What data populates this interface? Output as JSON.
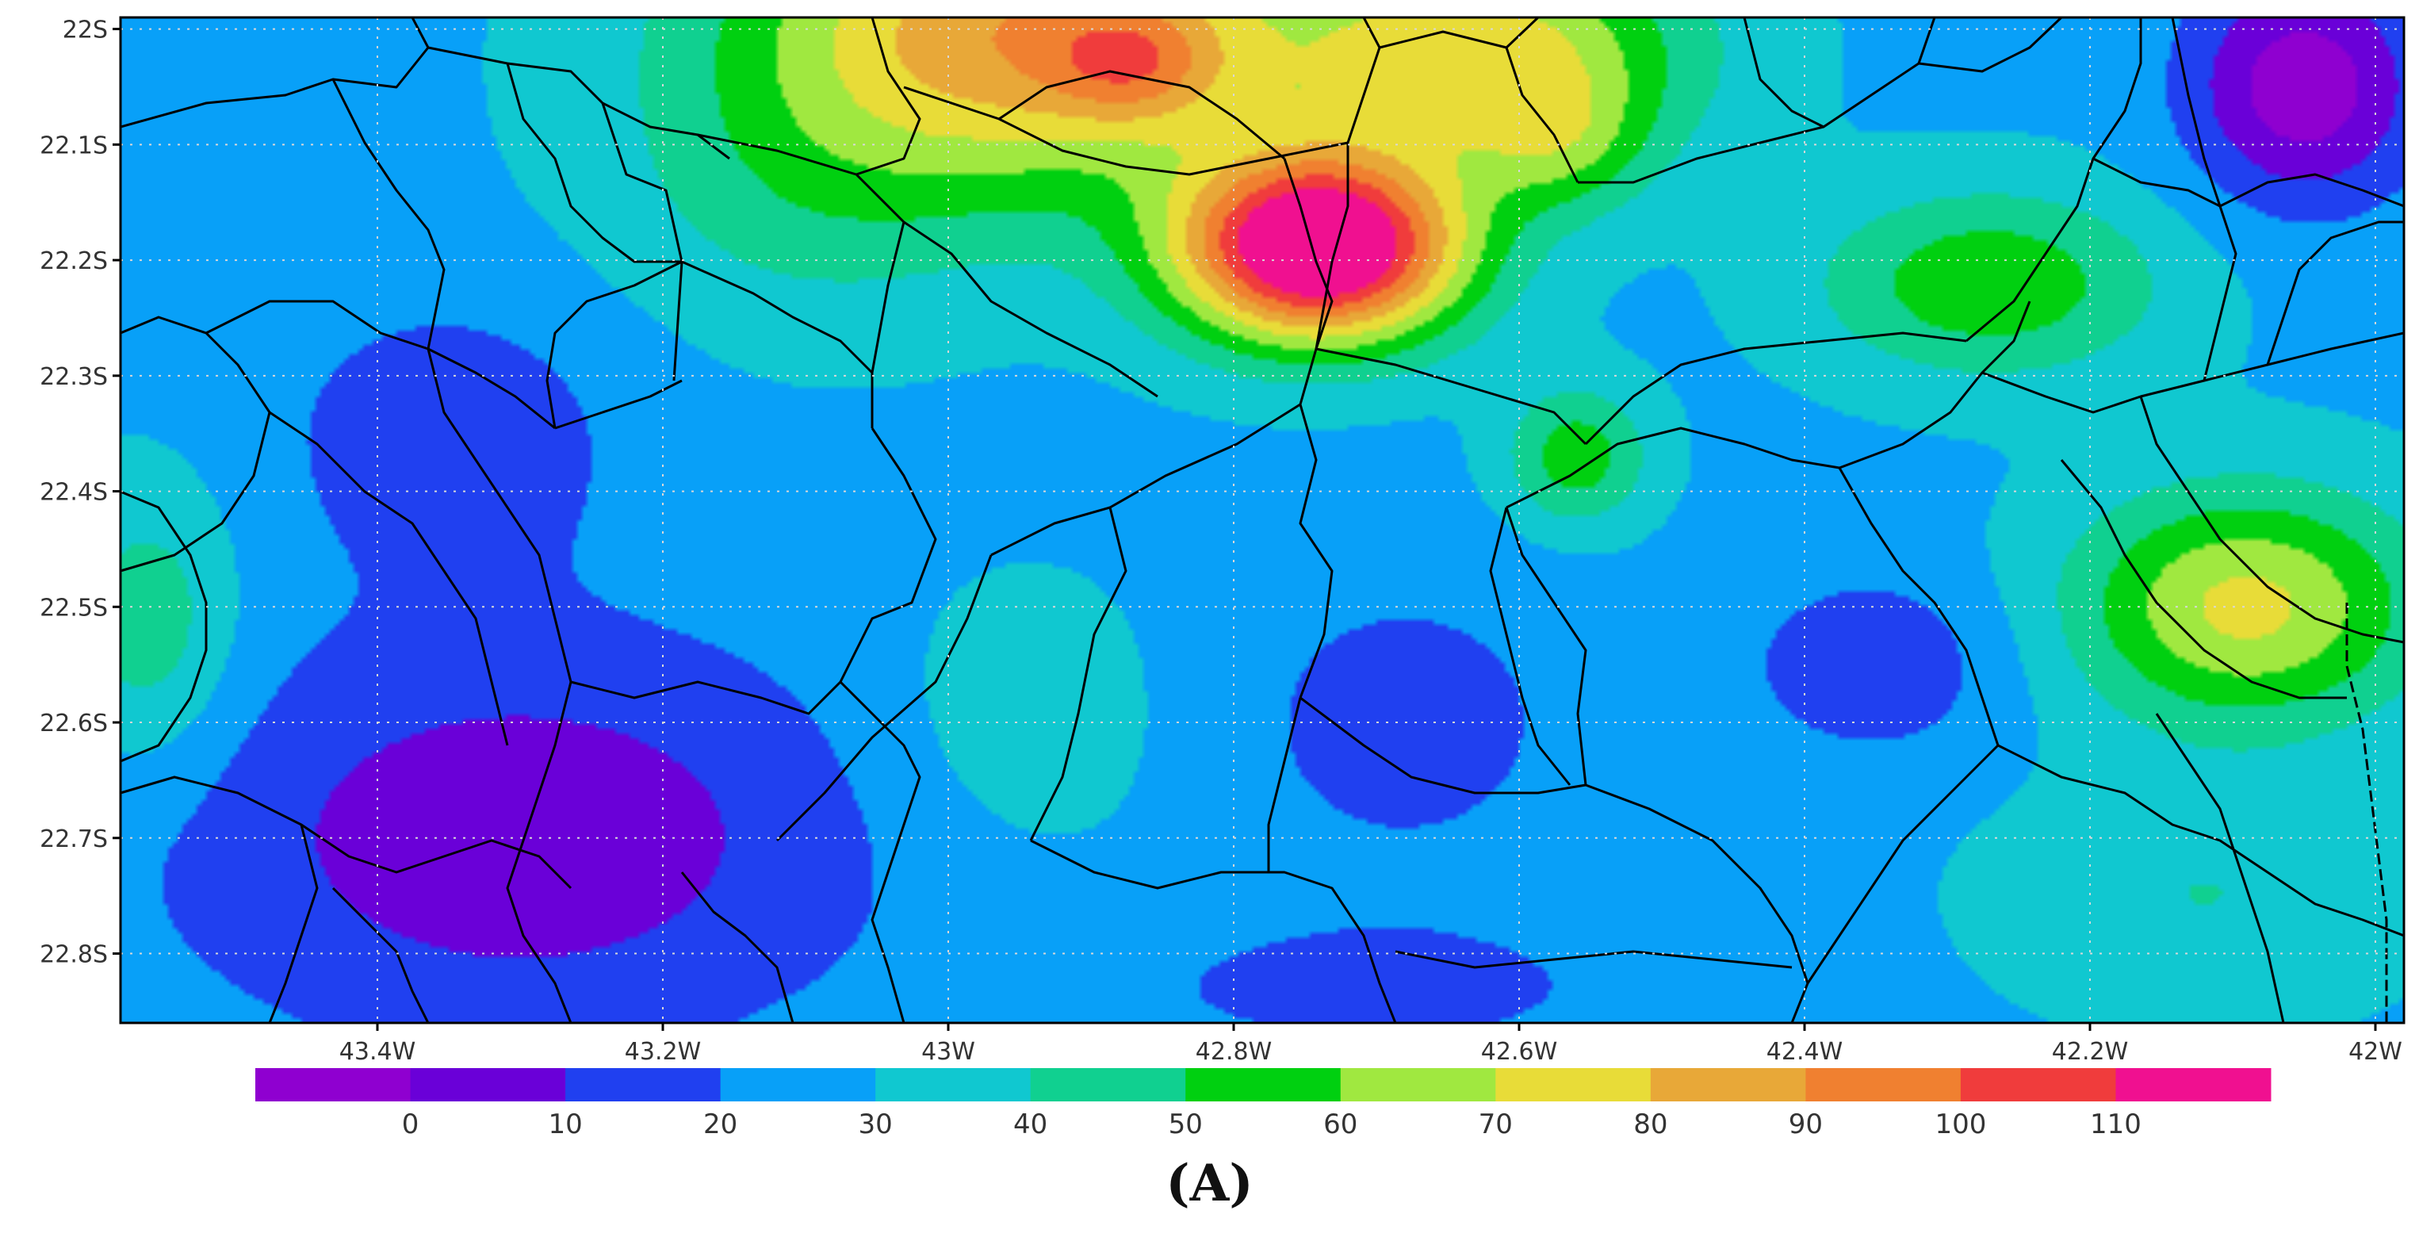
{
  "panel_label": "(A)",
  "map": {
    "lon_range": [
      -43.58,
      -41.98
    ],
    "lat_range": [
      -22.86,
      -21.99
    ],
    "lat_ticks": [
      {
        "value": -22.0,
        "label": "22S"
      },
      {
        "value": -22.1,
        "label": "22.1S"
      },
      {
        "value": -22.2,
        "label": "22.2S"
      },
      {
        "value": -22.3,
        "label": "22.3S"
      },
      {
        "value": -22.4,
        "label": "22.4S"
      },
      {
        "value": -22.5,
        "label": "22.5S"
      },
      {
        "value": -22.6,
        "label": "22.6S"
      },
      {
        "value": -22.7,
        "label": "22.7S"
      },
      {
        "value": -22.8,
        "label": "22.8S"
      }
    ],
    "lon_ticks": [
      {
        "value": -43.4,
        "label": "43.4W"
      },
      {
        "value": -43.2,
        "label": "43.2W"
      },
      {
        "value": -43.0,
        "label": "43W"
      },
      {
        "value": -42.8,
        "label": "42.8W"
      },
      {
        "value": -42.6,
        "label": "42.6W"
      },
      {
        "value": -42.4,
        "label": "42.4W"
      },
      {
        "value": -42.2,
        "label": "42.2W"
      },
      {
        "value": -42.0,
        "label": "42W"
      }
    ],
    "grid": true,
    "contour_levels": [
      0,
      10,
      20,
      30,
      40,
      50,
      60,
      70,
      80,
      90,
      100,
      110
    ],
    "hotspots": [
      {
        "lon": -42.74,
        "lat": -22.19,
        "value": 105,
        "sx": 0.1,
        "sy": 0.08
      },
      {
        "lon": -42.95,
        "lat": -22.0,
        "value": 60,
        "sx": 0.2,
        "sy": 0.14
      },
      {
        "lon": -42.62,
        "lat": -22.02,
        "value": 45,
        "sx": 0.14,
        "sy": 0.1
      },
      {
        "lon": -42.57,
        "lat": -22.1,
        "value": 20,
        "sx": 0.06,
        "sy": 0.06
      },
      {
        "lon": -42.87,
        "lat": -22.03,
        "value": 25,
        "sx": 0.06,
        "sy": 0.05
      },
      {
        "lon": -42.09,
        "lat": -22.5,
        "value": 45,
        "sx": 0.12,
        "sy": 0.1
      },
      {
        "lon": -42.27,
        "lat": -22.22,
        "value": 30,
        "sx": 0.12,
        "sy": 0.08
      },
      {
        "lon": -42.56,
        "lat": -22.37,
        "value": 28,
        "sx": 0.05,
        "sy": 0.06
      },
      {
        "lon": -42.95,
        "lat": -22.6,
        "value": 10,
        "sx": 0.1,
        "sy": 0.12
      },
      {
        "lon": -42.12,
        "lat": -22.75,
        "value": 12,
        "sx": 0.14,
        "sy": 0.1
      },
      {
        "lon": -43.56,
        "lat": -22.52,
        "value": 20,
        "sx": 0.06,
        "sy": 0.12
      },
      {
        "lon": -43.1,
        "lat": -22.15,
        "value": 12,
        "sx": 0.14,
        "sy": 0.12
      },
      {
        "lon": -43.3,
        "lat": -22.7,
        "value": -25,
        "sx": 0.25,
        "sy": 0.18
      },
      {
        "lon": -43.35,
        "lat": -22.35,
        "value": -15,
        "sx": 0.12,
        "sy": 0.12
      },
      {
        "lon": -42.68,
        "lat": -22.6,
        "value": -12,
        "sx": 0.13,
        "sy": 0.14
      },
      {
        "lon": -42.35,
        "lat": -22.55,
        "value": -16,
        "sx": 0.09,
        "sy": 0.08
      },
      {
        "lon": -42.7,
        "lat": -22.83,
        "value": -12,
        "sx": 0.18,
        "sy": 0.06
      },
      {
        "lon": -42.05,
        "lat": -22.05,
        "value": -35,
        "sx": 0.08,
        "sy": 0.1
      }
    ],
    "base_value": 28,
    "boundary_color": "#000000",
    "colors": [
      "#8f00d0",
      "#6a00d8",
      "#2040f0",
      "#08a0f8",
      "#10c8d0",
      "#10d090",
      "#00d010",
      "#a0e840",
      "#e8dc38",
      "#e8a838",
      "#f08030",
      "#f03c3c",
      "#f01090"
    ]
  },
  "colorbar": {
    "labels": [
      "0",
      "10",
      "20",
      "30",
      "40",
      "50",
      "60",
      "70",
      "80",
      "90",
      "100",
      "110"
    ],
    "colors": [
      "#8f00d0",
      "#6a00d8",
      "#2040f0",
      "#08a0f8",
      "#10c8d0",
      "#10d090",
      "#00d010",
      "#a0e840",
      "#e8dc38",
      "#e8a838",
      "#f08030",
      "#f03c3c",
      "#f01090"
    ]
  }
}
